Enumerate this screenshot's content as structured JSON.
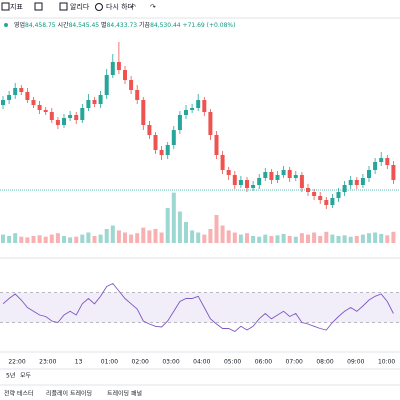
{
  "ui": {
    "toolbar": [
      "지표",
      "알리다",
      "다시 하다"
    ],
    "legend": {
      "open_label": "영업",
      "open": "84,458.75",
      "high_label": "시간",
      "high": "84,545.45",
      "low_label": "별",
      "low": "84,433.73",
      "close_label": "기끔",
      "close": "84,530.44",
      "change": "+71.69 (+0.08%)"
    },
    "ranges": [
      "5년",
      "모두"
    ],
    "footer": [
      "전략 테스터",
      "리플레이 트레이딩",
      "트레이딩 패널"
    ]
  },
  "chart_data": {
    "type": "candlestick",
    "up_color": "#26a69a",
    "down_color": "#ef5350",
    "rsi_color": "#7e57c2",
    "ylim": [
      83400,
      85100
    ],
    "price_line": 83600,
    "time_labels": [
      "22:00",
      "23:00",
      "13",
      "01:00",
      "02:00",
      "03:00",
      "04:00",
      "05:00",
      "06:00",
      "07:00",
      "08:00",
      "09:00",
      "10:00"
    ],
    "open": [
      84450,
      84500,
      84550,
      84620,
      84580,
      84500,
      84450,
      84400,
      84380,
      84300,
      84250,
      84320,
      84350,
      84300,
      84420,
      84500,
      84460,
      84550,
      84750,
      84880,
      84800,
      84700,
      84600,
      84500,
      84250,
      84150,
      84000,
      83950,
      84050,
      84200,
      84350,
      84400,
      84420,
      84500,
      84380,
      84150,
      83950,
      83800,
      83750,
      83650,
      83700,
      83620,
      83650,
      83720,
      83780,
      83700,
      83750,
      83800,
      83720,
      83750,
      83620,
      83580,
      83540,
      83500,
      83450,
      83520,
      83580,
      83650,
      83700,
      83650,
      83720,
      83800,
      83880,
      83920,
      83850
    ],
    "high": [
      84540,
      84590,
      84670,
      84650,
      84620,
      84530,
      84490,
      84430,
      84420,
      84330,
      84360,
      84390,
      84380,
      84460,
      84560,
      84530,
      84590,
      84810,
      84960,
      85080,
      84840,
      84740,
      84650,
      84530,
      84290,
      84180,
      84040,
      84080,
      84240,
      84390,
      84450,
      84460,
      84560,
      84530,
      84410,
      84190,
      83990,
      83830,
      83790,
      83740,
      83730,
      83690,
      83760,
      83820,
      83810,
      83790,
      83840,
      83830,
      83790,
      83780,
      83660,
      83610,
      83580,
      83530,
      83560,
      83620,
      83690,
      83740,
      83730,
      83760,
      83840,
      83920,
      83980,
      83950,
      83890
    ],
    "low": [
      84410,
      84460,
      84510,
      84550,
      84470,
      84420,
      84360,
      84350,
      84270,
      84210,
      84220,
      84290,
      84260,
      84270,
      84390,
      84430,
      84420,
      84510,
      84720,
      84760,
      84660,
      84560,
      84460,
      84200,
      84110,
      83960,
      83900,
      83910,
      84010,
      84160,
      84310,
      84370,
      84390,
      84340,
      84100,
      83910,
      83760,
      83700,
      83610,
      83620,
      83580,
      83590,
      83610,
      83690,
      83660,
      83670,
      83720,
      83680,
      83690,
      83580,
      83540,
      83500,
      83460,
      83410,
      83420,
      83480,
      83540,
      83610,
      83610,
      83620,
      83680,
      83760,
      83840,
      83810,
      83660
    ],
    "close": [
      84500,
      84550,
      84620,
      84580,
      84500,
      84450,
      84400,
      84380,
      84300,
      84250,
      84320,
      84350,
      84300,
      84420,
      84500,
      84460,
      84550,
      84750,
      84880,
      84800,
      84700,
      84600,
      84500,
      84250,
      84150,
      84000,
      83950,
      84050,
      84200,
      84350,
      84400,
      84420,
      84500,
      84380,
      84150,
      83950,
      83800,
      83750,
      83650,
      83700,
      83620,
      83650,
      83720,
      83780,
      83700,
      83750,
      83800,
      83720,
      83750,
      83620,
      83580,
      83540,
      83500,
      83450,
      83520,
      83580,
      83650,
      83700,
      83650,
      83720,
      83800,
      83880,
      83920,
      83850,
      83700
    ],
    "volume_ylim": [
      0,
      100
    ],
    "volume": [
      12,
      10,
      14,
      9,
      8,
      10,
      11,
      9,
      12,
      14,
      10,
      8,
      9,
      12,
      15,
      10,
      12,
      20,
      25,
      18,
      15,
      12,
      14,
      22,
      18,
      20,
      15,
      50,
      72,
      45,
      30,
      18,
      15,
      12,
      20,
      40,
      25,
      18,
      15,
      12,
      14,
      10,
      9,
      12,
      10,
      11,
      13,
      10,
      9,
      14,
      12,
      15,
      10,
      16,
      12,
      10,
      11,
      9,
      10,
      12,
      14,
      15,
      13,
      11,
      16
    ],
    "rsi_ylim": [
      0,
      100
    ],
    "rsi_bands": [
      30,
      70
    ],
    "rsi": [
      55,
      62,
      68,
      60,
      50,
      45,
      40,
      38,
      32,
      30,
      40,
      45,
      40,
      55,
      62,
      55,
      65,
      78,
      82,
      72,
      62,
      55,
      48,
      32,
      28,
      25,
      24,
      32,
      45,
      58,
      62,
      62,
      65,
      50,
      35,
      28,
      22,
      22,
      18,
      25,
      20,
      25,
      35,
      42,
      35,
      40,
      45,
      38,
      42,
      30,
      28,
      25,
      22,
      20,
      30,
      38,
      45,
      50,
      45,
      52,
      60,
      65,
      68,
      58,
      42
    ]
  }
}
